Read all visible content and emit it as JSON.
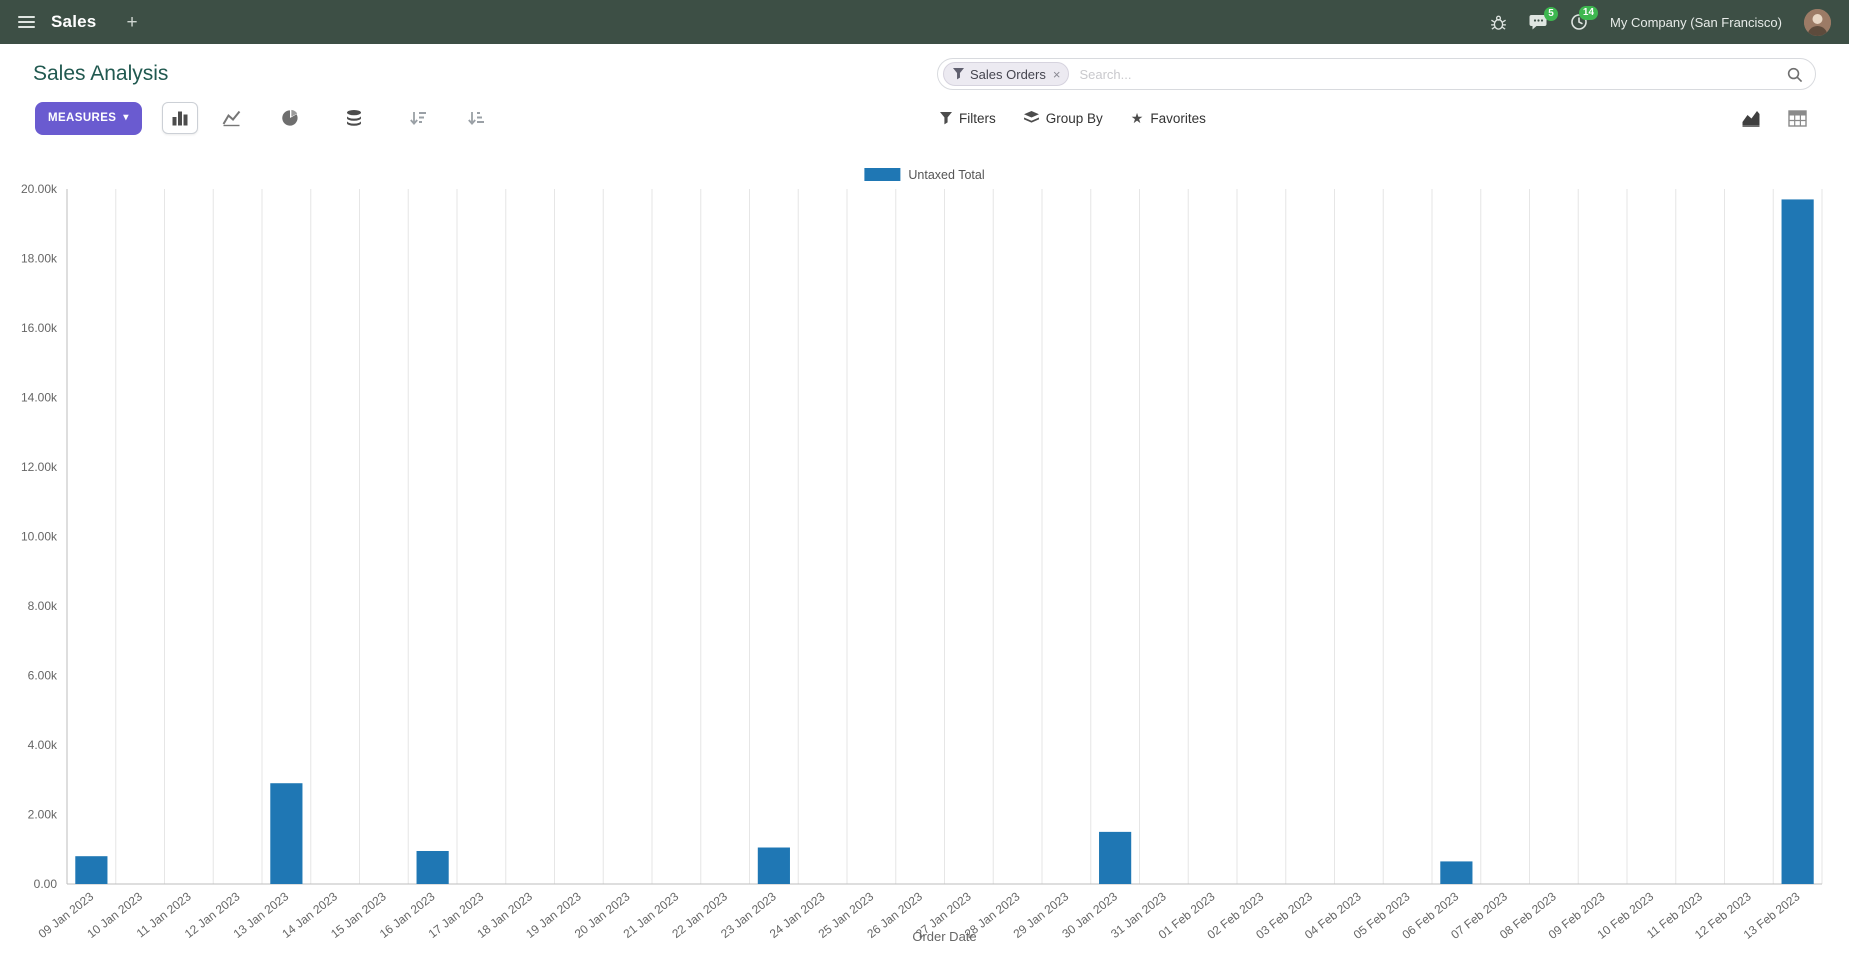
{
  "navbar": {
    "app_name": "Sales",
    "company": "My Company (San Francisco)",
    "message_badge": "5",
    "activity_badge": "14"
  },
  "control_panel": {
    "title": "Sales Analysis",
    "search": {
      "facet_label": "Sales Orders",
      "placeholder": "Search..."
    },
    "measures_label": "MEASURES",
    "filters_label": "Filters",
    "group_by_label": "Group By",
    "favorites_label": "Favorites"
  },
  "icons": {
    "plus": "+",
    "close": "×",
    "caret_down": "▾",
    "star": "★"
  },
  "colors": {
    "navbar_bg": "#3d4f45",
    "primary_button": "#6a5bd0",
    "badge_green": "#3eb750",
    "bar_blue": "#1f77b4"
  },
  "chart_data": {
    "type": "bar",
    "title": "",
    "xlabel": "Order Date",
    "ylabel": "",
    "ylim": [
      0,
      20000
    ],
    "yticks": [
      0,
      2000,
      4000,
      6000,
      8000,
      10000,
      12000,
      14000,
      16000,
      18000,
      20000
    ],
    "ytick_labels": [
      "0.00",
      "2.00k",
      "4.00k",
      "6.00k",
      "8.00k",
      "10.00k",
      "12.00k",
      "14.00k",
      "16.00k",
      "18.00k",
      "20.00k"
    ],
    "grid": "vertical",
    "legend_position": "top",
    "categories": [
      "09 Jan 2023",
      "10 Jan 2023",
      "11 Jan 2023",
      "12 Jan 2023",
      "13 Jan 2023",
      "14 Jan 2023",
      "15 Jan 2023",
      "16 Jan 2023",
      "17 Jan 2023",
      "18 Jan 2023",
      "19 Jan 2023",
      "20 Jan 2023",
      "21 Jan 2023",
      "22 Jan 2023",
      "23 Jan 2023",
      "24 Jan 2023",
      "25 Jan 2023",
      "26 Jan 2023",
      "27 Jan 2023",
      "28 Jan 2023",
      "29 Jan 2023",
      "30 Jan 2023",
      "31 Jan 2023",
      "01 Feb 2023",
      "02 Feb 2023",
      "03 Feb 2023",
      "04 Feb 2023",
      "05 Feb 2023",
      "06 Feb 2023",
      "07 Feb 2023",
      "08 Feb 2023",
      "09 Feb 2023",
      "10 Feb 2023",
      "11 Feb 2023",
      "12 Feb 2023",
      "13 Feb 2023"
    ],
    "series": [
      {
        "name": "Untaxed Total",
        "color": "#1f77b4",
        "values": [
          800,
          0,
          0,
          0,
          2900,
          0,
          0,
          950,
          0,
          0,
          0,
          0,
          0,
          0,
          1050,
          0,
          0,
          0,
          0,
          0,
          0,
          1500,
          0,
          0,
          0,
          0,
          0,
          0,
          650,
          0,
          0,
          0,
          0,
          0,
          0,
          19700
        ]
      }
    ]
  }
}
